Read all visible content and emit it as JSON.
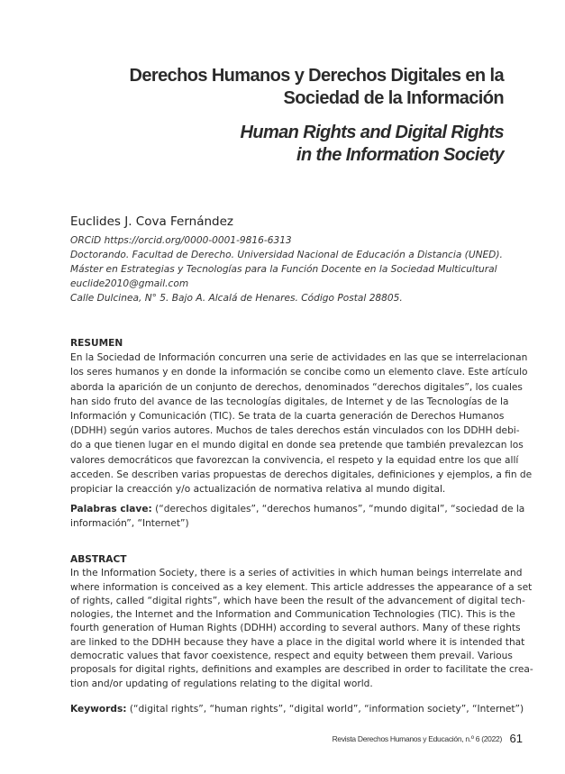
{
  "title_es": [
    "Derechos Humanos y Derechos Digitales en la",
    "Sociedad de la Información"
  ],
  "title_en": [
    "Human Rights and Digital Rights",
    "in the Information Society"
  ],
  "author": "Euclides J. Cova Fernández",
  "affiliation": [
    "ORCiD https://orcid.org/0000-0001-9816-6313",
    "Doctorando. Facultad de Derecho. Universidad Nacional de Educación a Distancia (UNED).",
    "Máster en Estrategias y Tecnologías para la Función Docente en la Sociedad Multicultural",
    "euclide2010@gmail.com",
    "Calle Dulcinea, N° 5. Bajo A. Alcalá de Henares. Código Postal 28805."
  ],
  "resumen": {
    "heading": "RESUMEN",
    "lines": [
      "En la Sociedad de Información concurren una serie de actividades en las que se interrelacionan",
      "los seres humanos y en donde la información se concibe como un elemento clave. Este artículo",
      "aborda la aparición de un conjunto de derechos, denominados “derechos digitales”, los cuales",
      "han sido fruto del avance de las tecnologías digitales, de Internet y de las Tecnologías de la",
      "Información y Comunicación (TIC). Se trata de la cuarta generación de Derechos Humanos",
      "(DDHH) según varios autores. Muchos de tales derechos están vinculados con los DDHH debi-",
      "do a que tienen lugar en el mundo digital en donde sea pretende que también prevalezcan los",
      "valores democráticos que favorezcan la convivencia, el respeto y la equidad entre los que allí",
      "acceden. Se describen varias propuestas de derechos digitales, definiciones y ejemplos, a fin de",
      "propiciar la creacción y/o actualización de normativa relativa al mundo digital."
    ],
    "keywords_label": "Palabras clave:",
    "keywords_lines": [
      "(“derechos digitales”, “derechos humanos”, “mundo digital”, “sociedad de la",
      "información”, “Internet”)"
    ]
  },
  "abstract": {
    "heading": "ABSTRACT",
    "lines": [
      "In the Information Society, there is a series of activities in which human beings interrelate and",
      "where information is conceived as a key element. This article addresses the appearance of a set",
      "of rights, called “digital rights”, which have been the result of the advancement of digital tech-",
      "nologies, the Internet and the Information and Communication Technologies (TIC). This is the",
      "fourth generation of Human Rights (DDHH) according to several authors. Many of these rights",
      "are linked to the DDHH because they have a place in the digital world where it is intended that",
      "democratic values that favor coexistence, respect and equity between them prevail. Various",
      "proposals for digital rights, definitions and examples are described in order to facilitate the crea-",
      "tion and/or updating of regulations relating to the digital world."
    ],
    "keywords_label": "Keywords:",
    "keywords_text": "(“digital rights”, “human rights”, “digital world”, “information society”, “Internet”)"
  },
  "footer": {
    "journal": "Revista Derechos Humanos y Educación, n.º 6 (2022)",
    "page": "61"
  }
}
